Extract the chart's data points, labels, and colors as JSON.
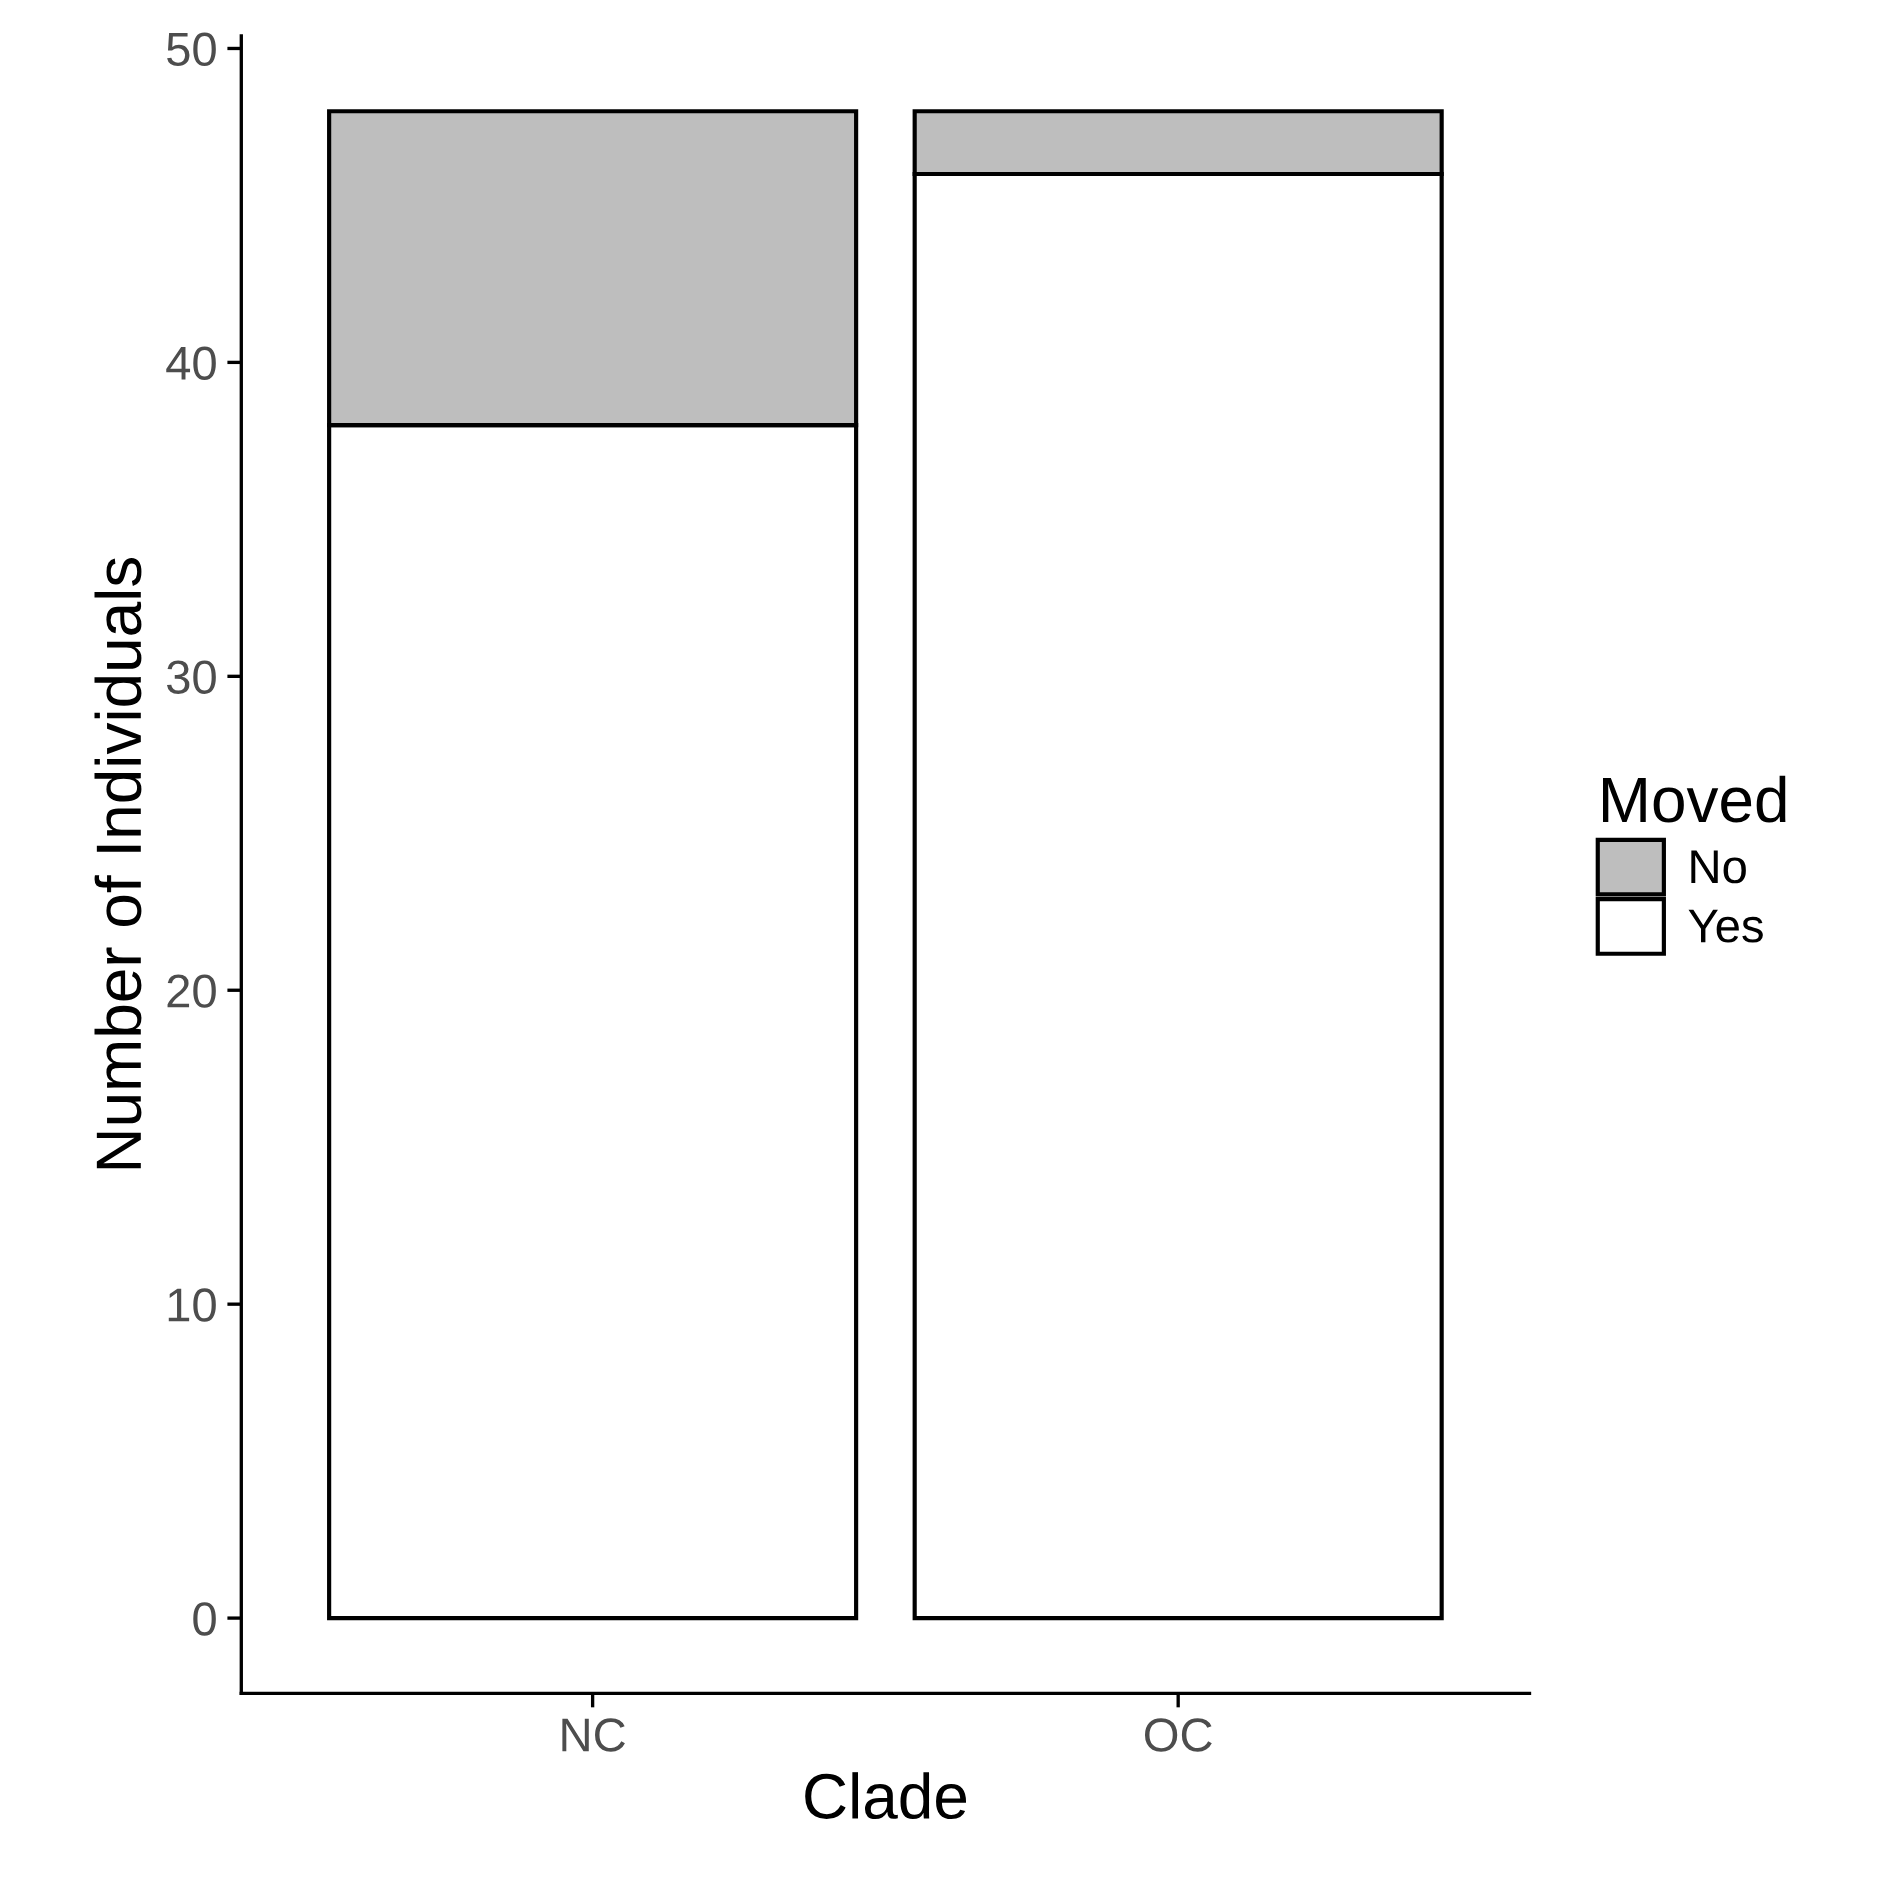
{
  "chart_data": {
    "type": "bar",
    "stacked": true,
    "xlabel": "Clade",
    "ylabel": "Number of Individuals",
    "legend_title": "Moved",
    "legend": "right",
    "grid": false,
    "categories": [
      "NC",
      "OC"
    ],
    "series": [
      {
        "name": "Yes",
        "color": "#ffffff",
        "values": [
          38,
          46
        ]
      },
      {
        "name": "No",
        "color": "#bebebe",
        "values": [
          10,
          2
        ]
      }
    ],
    "ylim": [
      -2.4,
      50.4
    ],
    "yticks": [
      0,
      10,
      20,
      30,
      40,
      50
    ]
  }
}
